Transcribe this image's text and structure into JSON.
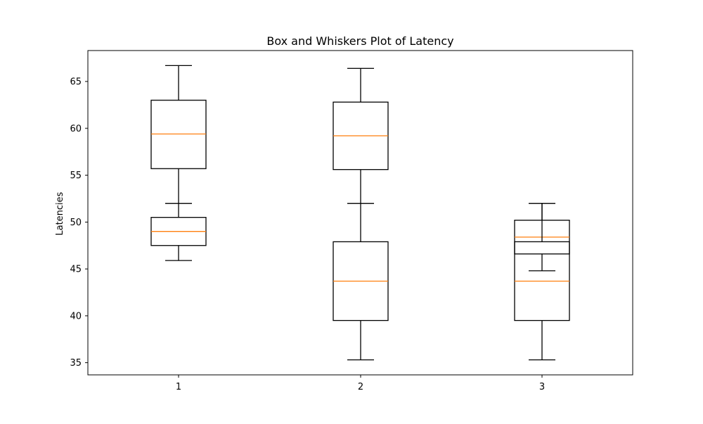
{
  "chart_data": {
    "type": "box",
    "title": "Box and Whiskers Plot of Latency",
    "xlabel": "",
    "ylabel": "Latencies",
    "ylim": [
      33.7,
      68.3
    ],
    "yticks": [
      35,
      40,
      45,
      50,
      55,
      60,
      65
    ],
    "categories": [
      "1",
      "2",
      "3"
    ],
    "grid": false,
    "colors": {
      "box": "#000000",
      "median": "#ff7f0e"
    },
    "boxes": [
      {
        "position": 1,
        "whisker_low": 52.0,
        "q1": 55.7,
        "median": 59.4,
        "q3": 63.0,
        "whisker_high": 66.7
      },
      {
        "position": 1,
        "whisker_low": 45.9,
        "q1": 47.5,
        "median": 49.0,
        "q3": 50.5,
        "whisker_high": 52.0
      },
      {
        "position": 2,
        "whisker_low": 52.0,
        "q1": 55.6,
        "median": 59.2,
        "q3": 62.8,
        "whisker_high": 66.4
      },
      {
        "position": 2,
        "whisker_low": 35.3,
        "q1": 39.5,
        "median": 43.7,
        "q3": 47.9,
        "whisker_high": 52.0
      },
      {
        "position": 3,
        "whisker_low": 44.8,
        "q1": 46.6,
        "median": 48.4,
        "q3": 50.2,
        "whisker_high": 52.0
      },
      {
        "position": 3,
        "whisker_low": 35.3,
        "q1": 39.5,
        "median": 43.7,
        "q3": 47.9,
        "whisker_high": 52.0
      }
    ]
  }
}
